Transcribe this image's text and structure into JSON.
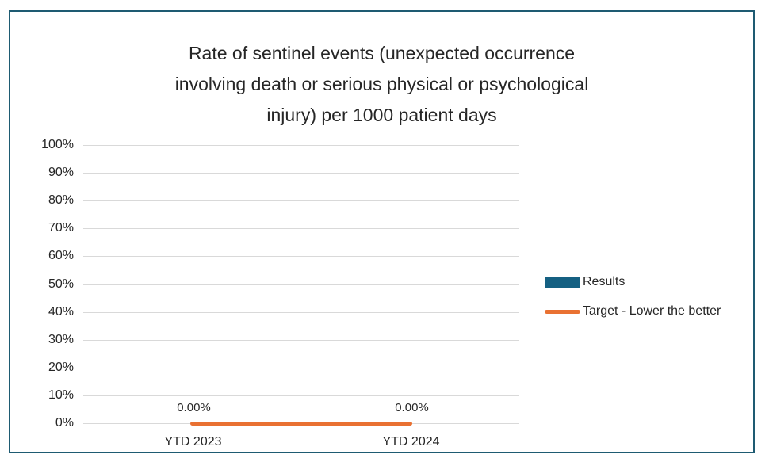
{
  "title_lines": [
    "Rate of sentinel events (unexpected occurrence",
    "involving death or serious physical or psychological",
    "injury) per 1000 patient days"
  ],
  "colors": {
    "frame_border": "#1e5b72",
    "results_series": "#156082",
    "target_series": "#e97132",
    "gridline": "#d9d9d9",
    "text": "#262626"
  },
  "chart_data": {
    "type": "bar",
    "title": "Rate of sentinel events (unexpected occurrence involving death or serious physical or psychological injury) per 1000 patient days",
    "categories": [
      "YTD 2023",
      "YTD 2024"
    ],
    "series": [
      {
        "name": "Results",
        "type": "bar",
        "color": "#156082",
        "values": [
          0.0,
          0.0
        ]
      },
      {
        "name": "Target - Lower the better",
        "type": "line",
        "color": "#e97132",
        "values": [
          0.0,
          0.0
        ]
      }
    ],
    "data_labels": [
      "0.00%",
      "0.00%"
    ],
    "xlabel": "",
    "ylabel": "",
    "ylim": [
      0,
      1
    ],
    "ytick_labels": [
      "0%",
      "10%",
      "20%",
      "30%",
      "40%",
      "50%",
      "60%",
      "70%",
      "80%",
      "90%",
      "100%"
    ],
    "grid": true,
    "legend_position": "right"
  }
}
